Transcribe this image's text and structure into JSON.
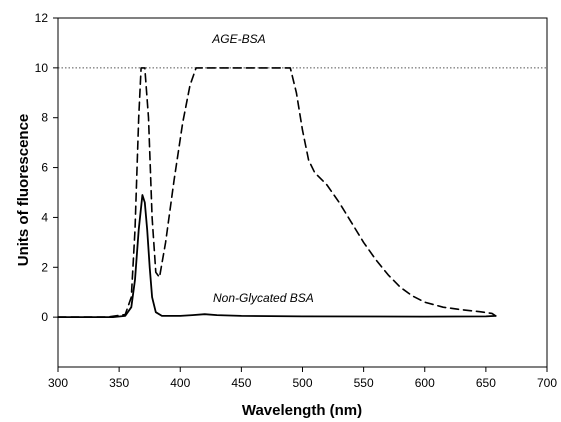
{
  "chart_data": {
    "type": "line",
    "xlabel": "Wavelength (nm)",
    "ylabel": "Units of fluorescence",
    "xlim": [
      300,
      700
    ],
    "ylim": [
      -2,
      12
    ],
    "xticks": [
      300,
      350,
      400,
      450,
      500,
      550,
      600,
      650,
      700
    ],
    "yticks": [
      0,
      2,
      4,
      6,
      8,
      10,
      12
    ],
    "grid": false,
    "reference_lines": [
      {
        "y": 10,
        "style": "dotted"
      }
    ],
    "series": [
      {
        "name": "AGE-BSA",
        "style": "dashed",
        "label_at": [
          448,
          11
        ],
        "points": [
          [
            300,
            0
          ],
          [
            340,
            0
          ],
          [
            355,
            0.1
          ],
          [
            360,
            0.8
          ],
          [
            363,
            3.5
          ],
          [
            366,
            8
          ],
          [
            368,
            10
          ],
          [
            371,
            10
          ],
          [
            374,
            8
          ],
          [
            377,
            4
          ],
          [
            380,
            1.8
          ],
          [
            383,
            1.6
          ],
          [
            388,
            3
          ],
          [
            395,
            5.5
          ],
          [
            402,
            7.8
          ],
          [
            408,
            9.3
          ],
          [
            413,
            10
          ],
          [
            490,
            10
          ],
          [
            495,
            9
          ],
          [
            500,
            7.5
          ],
          [
            505,
            6.3
          ],
          [
            510,
            5.8
          ],
          [
            520,
            5.3
          ],
          [
            530,
            4.6
          ],
          [
            540,
            3.8
          ],
          [
            550,
            3.0
          ],
          [
            560,
            2.3
          ],
          [
            570,
            1.7
          ],
          [
            580,
            1.2
          ],
          [
            590,
            0.85
          ],
          [
            600,
            0.6
          ],
          [
            615,
            0.4
          ],
          [
            630,
            0.3
          ],
          [
            645,
            0.22
          ],
          [
            655,
            0.15
          ],
          [
            658,
            0.05
          ]
        ]
      },
      {
        "name": "Non-Glycated BSA",
        "style": "solid",
        "label_at": [
          468,
          0.6
        ],
        "points": [
          [
            300,
            0
          ],
          [
            345,
            0
          ],
          [
            355,
            0.05
          ],
          [
            360,
            0.4
          ],
          [
            363,
            1.5
          ],
          [
            366,
            3.5
          ],
          [
            369,
            4.9
          ],
          [
            371,
            4.6
          ],
          [
            373,
            3.5
          ],
          [
            375,
            2.0
          ],
          [
            377,
            0.8
          ],
          [
            380,
            0.2
          ],
          [
            385,
            0.05
          ],
          [
            400,
            0.05
          ],
          [
            410,
            0.08
          ],
          [
            420,
            0.12
          ],
          [
            430,
            0.08
          ],
          [
            450,
            0.05
          ],
          [
            500,
            0.03
          ],
          [
            600,
            0.02
          ],
          [
            650,
            0.03
          ],
          [
            658,
            0.05
          ]
        ]
      }
    ]
  }
}
